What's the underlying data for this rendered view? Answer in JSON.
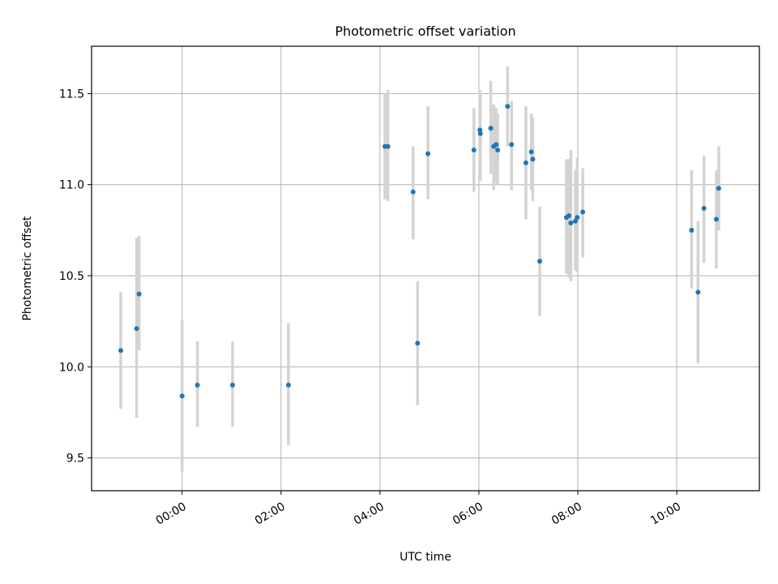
{
  "chart_data": {
    "type": "scatter",
    "title": "Photometric offset variation",
    "xlabel": "UTC time",
    "ylabel": "Photometric offset",
    "x_unit": "hours",
    "x_is_time": true,
    "xlim": [
      -1.83,
      11.67
    ],
    "ylim": [
      9.32,
      11.76
    ],
    "x_ticks": [
      {
        "value": 0,
        "label": "00:00"
      },
      {
        "value": 2,
        "label": "02:00"
      },
      {
        "value": 4,
        "label": "04:00"
      },
      {
        "value": 6,
        "label": "06:00"
      },
      {
        "value": 8,
        "label": "08:00"
      },
      {
        "value": 10,
        "label": "10:00"
      }
    ],
    "y_ticks": [
      {
        "value": 9.5,
        "label": "9.5"
      },
      {
        "value": 10.0,
        "label": "10.0"
      },
      {
        "value": 10.5,
        "label": "10.5"
      },
      {
        "value": 11.0,
        "label": "11.0"
      },
      {
        "value": 11.5,
        "label": "11.5"
      }
    ],
    "grid": true,
    "point_color": "#1f77b4",
    "errorbar_color": "#d3d3d3",
    "points": [
      {
        "x": -1.24,
        "y": 10.09,
        "lo": 9.77,
        "hi": 10.41
      },
      {
        "x": -0.92,
        "y": 10.21,
        "lo": 9.72,
        "hi": 10.71
      },
      {
        "x": -0.87,
        "y": 10.4,
        "lo": 10.09,
        "hi": 10.72
      },
      {
        "x": 0.0,
        "y": 9.84,
        "lo": 9.42,
        "hi": 10.26
      },
      {
        "x": 0.31,
        "y": 9.9,
        "lo": 9.67,
        "hi": 10.14
      },
      {
        "x": 1.02,
        "y": 9.9,
        "lo": 9.67,
        "hi": 10.14
      },
      {
        "x": 2.15,
        "y": 9.9,
        "lo": 9.57,
        "hi": 10.24
      },
      {
        "x": 4.1,
        "y": 11.21,
        "lo": 10.92,
        "hi": 11.5
      },
      {
        "x": 4.16,
        "y": 11.21,
        "lo": 10.91,
        "hi": 11.52
      },
      {
        "x": 4.67,
        "y": 10.96,
        "lo": 10.7,
        "hi": 11.21
      },
      {
        "x": 4.76,
        "y": 10.13,
        "lo": 9.79,
        "hi": 10.47
      },
      {
        "x": 4.97,
        "y": 11.17,
        "lo": 10.92,
        "hi": 11.43
      },
      {
        "x": 5.9,
        "y": 11.19,
        "lo": 10.96,
        "hi": 11.42
      },
      {
        "x": 6.02,
        "y": 11.3,
        "lo": 11.07,
        "hi": 11.52
      },
      {
        "x": 6.03,
        "y": 11.28,
        "lo": 11.02,
        "hi": 11.5
      },
      {
        "x": 6.24,
        "y": 11.31,
        "lo": 11.06,
        "hi": 11.57
      },
      {
        "x": 6.3,
        "y": 11.21,
        "lo": 10.97,
        "hi": 11.44
      },
      {
        "x": 6.35,
        "y": 11.22,
        "lo": 11.01,
        "hi": 11.42
      },
      {
        "x": 6.38,
        "y": 11.19,
        "lo": 11.0,
        "hi": 11.39
      },
      {
        "x": 6.58,
        "y": 11.43,
        "lo": 11.21,
        "hi": 11.65
      },
      {
        "x": 6.66,
        "y": 11.22,
        "lo": 10.97,
        "hi": 11.46
      },
      {
        "x": 6.95,
        "y": 11.12,
        "lo": 10.81,
        "hi": 11.43
      },
      {
        "x": 7.06,
        "y": 11.18,
        "lo": 10.97,
        "hi": 11.39
      },
      {
        "x": 7.09,
        "y": 11.14,
        "lo": 10.91,
        "hi": 11.37
      },
      {
        "x": 7.23,
        "y": 10.58,
        "lo": 10.28,
        "hi": 10.88
      },
      {
        "x": 7.77,
        "y": 10.82,
        "lo": 10.51,
        "hi": 11.14
      },
      {
        "x": 7.82,
        "y": 10.83,
        "lo": 10.49,
        "hi": 11.14
      },
      {
        "x": 7.86,
        "y": 10.79,
        "lo": 10.47,
        "hi": 11.19
      },
      {
        "x": 7.95,
        "y": 10.8,
        "lo": 10.53,
        "hi": 11.08
      },
      {
        "x": 7.99,
        "y": 10.82,
        "lo": 10.52,
        "hi": 11.15
      },
      {
        "x": 8.1,
        "y": 10.85,
        "lo": 10.6,
        "hi": 11.09
      },
      {
        "x": 10.3,
        "y": 10.75,
        "lo": 10.43,
        "hi": 11.08
      },
      {
        "x": 10.43,
        "y": 10.41,
        "lo": 10.02,
        "hi": 10.8
      },
      {
        "x": 10.55,
        "y": 10.87,
        "lo": 10.57,
        "hi": 11.16
      },
      {
        "x": 10.8,
        "y": 10.81,
        "lo": 10.54,
        "hi": 11.08
      },
      {
        "x": 10.85,
        "y": 10.98,
        "lo": 10.75,
        "hi": 11.21
      }
    ]
  }
}
